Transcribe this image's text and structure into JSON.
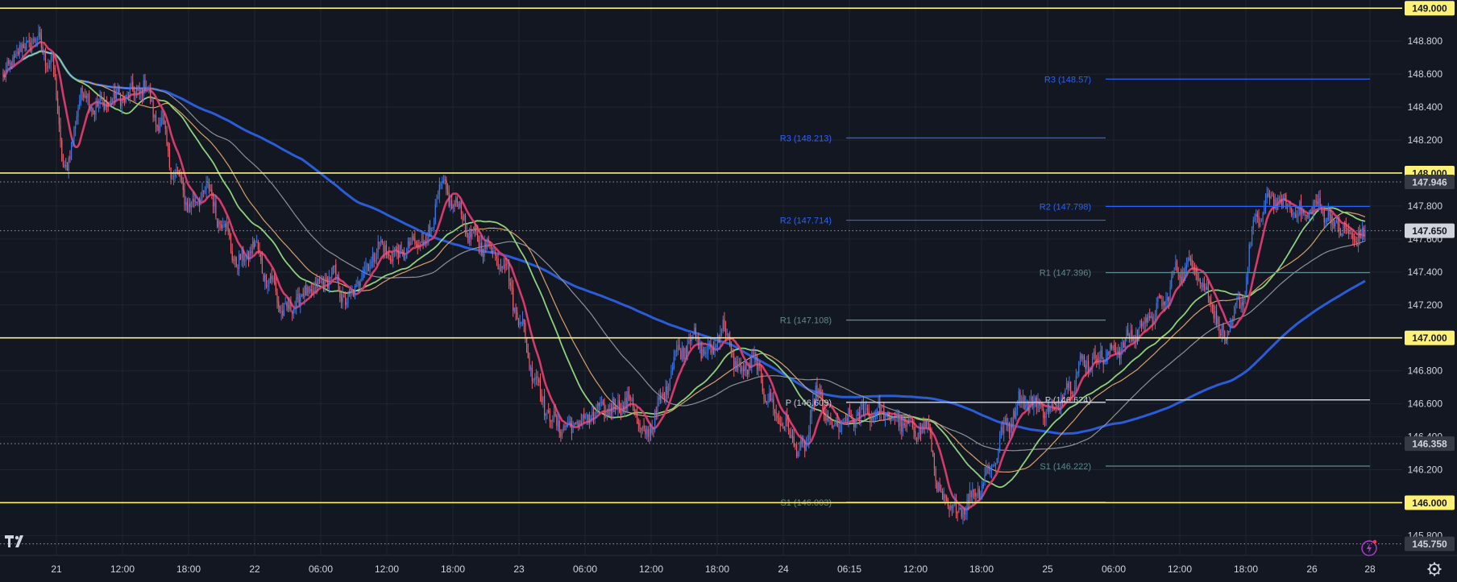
{
  "chart_data": {
    "type": "candlestick",
    "ylim": [
      145.68,
      149.05
    ],
    "price_ticks": [
      "148.800",
      "148.600",
      "148.400",
      "148.200",
      "147.800",
      "147.600",
      "147.400",
      "147.200",
      "146.800",
      "146.600",
      "146.400",
      "146.200",
      "145.800"
    ],
    "time_ticks": [
      "21",
      "12:00",
      "18:00",
      "22",
      "06:00",
      "12:00",
      "18:00",
      "23",
      "06:00",
      "12:00",
      "18:00",
      "24",
      "06:15",
      "12:00",
      "18:00",
      "25",
      "06:00",
      "12:00",
      "18:00",
      "26",
      "28"
    ],
    "last_price": "147.650",
    "close_series": [
      148.58,
      148.74,
      148.81,
      148.68,
      148.02,
      148.48,
      148.4,
      148.45,
      148.47,
      148.52,
      148.3,
      147.98,
      147.8,
      147.9,
      147.7,
      147.45,
      147.55,
      147.35,
      147.15,
      147.25,
      147.3,
      147.38,
      147.22,
      147.4,
      147.55,
      147.5,
      147.55,
      147.6,
      147.9,
      147.8,
      147.6,
      147.55,
      147.45,
      147.1,
      146.75,
      146.5,
      146.45,
      146.5,
      146.55,
      146.58,
      146.62,
      146.4,
      146.6,
      146.9,
      147.0,
      146.9,
      147.05,
      146.8,
      146.85,
      146.6,
      146.45,
      146.3,
      146.65,
      146.45,
      146.5,
      146.55,
      146.55,
      146.5,
      146.45,
      146.45,
      146.0,
      145.95,
      146.05,
      146.2,
      146.45,
      146.62,
      146.6,
      146.55,
      146.7,
      146.85,
      146.88,
      146.92,
      147.0,
      147.1,
      147.2,
      147.4,
      147.45,
      147.25,
      147.0,
      147.2,
      147.7,
      147.85,
      147.8,
      147.75,
      147.8,
      147.7,
      147.62,
      147.6
    ],
    "horizontal_levels": [
      {
        "price": "149.000",
        "value": 149.0,
        "color": "#fff176"
      },
      {
        "price": "148.000",
        "value": 148.0,
        "color": "#fff176"
      },
      {
        "price": "147.000",
        "value": 147.0,
        "color": "#fff176"
      },
      {
        "price": "146.000",
        "value": 146.0,
        "color": "#fff176"
      }
    ],
    "dotted_levels": [
      {
        "price": "147.946",
        "value": 147.946
      },
      {
        "price": "147.650",
        "value": 147.65
      },
      {
        "price": "146.358",
        "value": 146.358
      },
      {
        "price": "145.750",
        "value": 145.75
      }
    ],
    "pivot_sessions": [
      {
        "levels": [
          {
            "label": "R3 (148.213)",
            "value": 148.213,
            "color": "#2962ff"
          },
          {
            "label": "R2 (147.714)",
            "value": 147.714,
            "color": "#2962ff"
          },
          {
            "label": "R1 (147.108)",
            "value": 147.108,
            "color": "#5d8a8d"
          },
          {
            "label": "P (146.609)",
            "value": 146.609,
            "color": "#c8ccd4"
          },
          {
            "label": "S1 (146.003)",
            "value": 146.003,
            "color": "#5d8a8d"
          }
        ]
      },
      {
        "levels": [
          {
            "label": "R3 (148.57)",
            "value": 148.57,
            "color": "#2962ff"
          },
          {
            "label": "R2 (147.798)",
            "value": 147.798,
            "color": "#2962ff"
          },
          {
            "label": "R1 (147.396)",
            "value": 147.396,
            "color": "#5d8a8d"
          },
          {
            "label": "P (146.624)",
            "value": 146.624,
            "color": "#c8ccd4"
          },
          {
            "label": "S1 (146.222)",
            "value": 146.222,
            "color": "#5d8a8d"
          }
        ]
      }
    ],
    "moving_averages": [
      {
        "period": 200,
        "color": "#2a5cd8"
      },
      {
        "period": 100,
        "color": "#8d8f99"
      },
      {
        "period": 55,
        "color": "#d8a06a"
      },
      {
        "period": 34,
        "color": "#8ed17c"
      },
      {
        "period": 9,
        "color": "#d6396b"
      }
    ],
    "colors": {
      "background": "#131722",
      "grid": "#1f2430",
      "up": "#3e78e6",
      "down": "#ef5f6e",
      "level": "#fff176",
      "dotted": "#9598a1",
      "axis_text": "#d1d4dc"
    }
  },
  "ui": {
    "logo_text": "TV",
    "logo_icon": "tradingview-logo-icon",
    "lightning_icon": "lightning-icon",
    "settings_icon": "gear-icon"
  }
}
